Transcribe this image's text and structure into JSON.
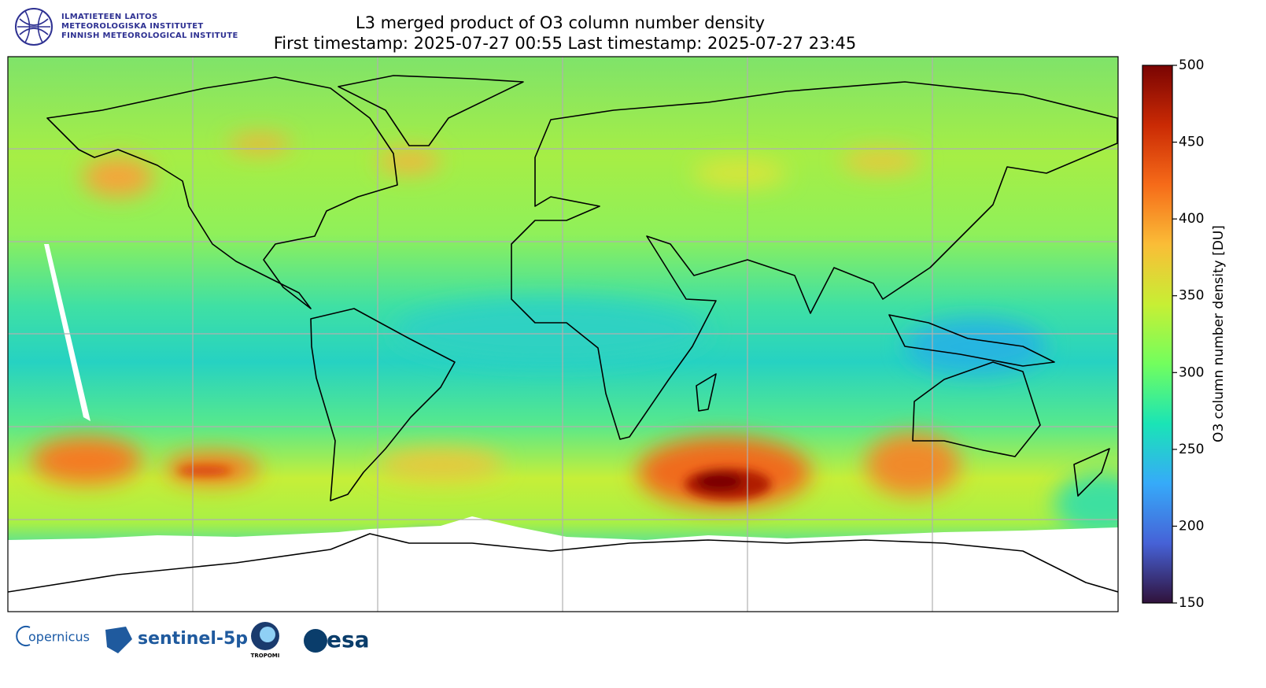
{
  "header": {
    "logo_lines": [
      "ILMATIETEEN LAITOS",
      "METEOROLOGISKA INSTITUTET",
      "FINNISH METEOROLOGICAL INSTITUTE"
    ],
    "title": "L3 merged product of O3 column number density",
    "subtitle": "First timestamp: 2025-07-27 00:55   Last timestamp: 2025-07-27 23:45"
  },
  "colorbar": {
    "label": "O3 column number density [DU]",
    "lim": [
      150,
      500
    ],
    "ticks": [
      150,
      200,
      250,
      300,
      350,
      400,
      450,
      500
    ],
    "colors": [
      "#30123b",
      "#4662d7",
      "#36aaf9",
      "#1ae4b6",
      "#72fe5e",
      "#c7ef34",
      "#fabd37",
      "#f66b19",
      "#ca2a04",
      "#7a0403"
    ]
  },
  "footer": {
    "logos": [
      "opernicus",
      "sentinel-5p",
      "TROPOMI",
      "esa"
    ]
  }
}
